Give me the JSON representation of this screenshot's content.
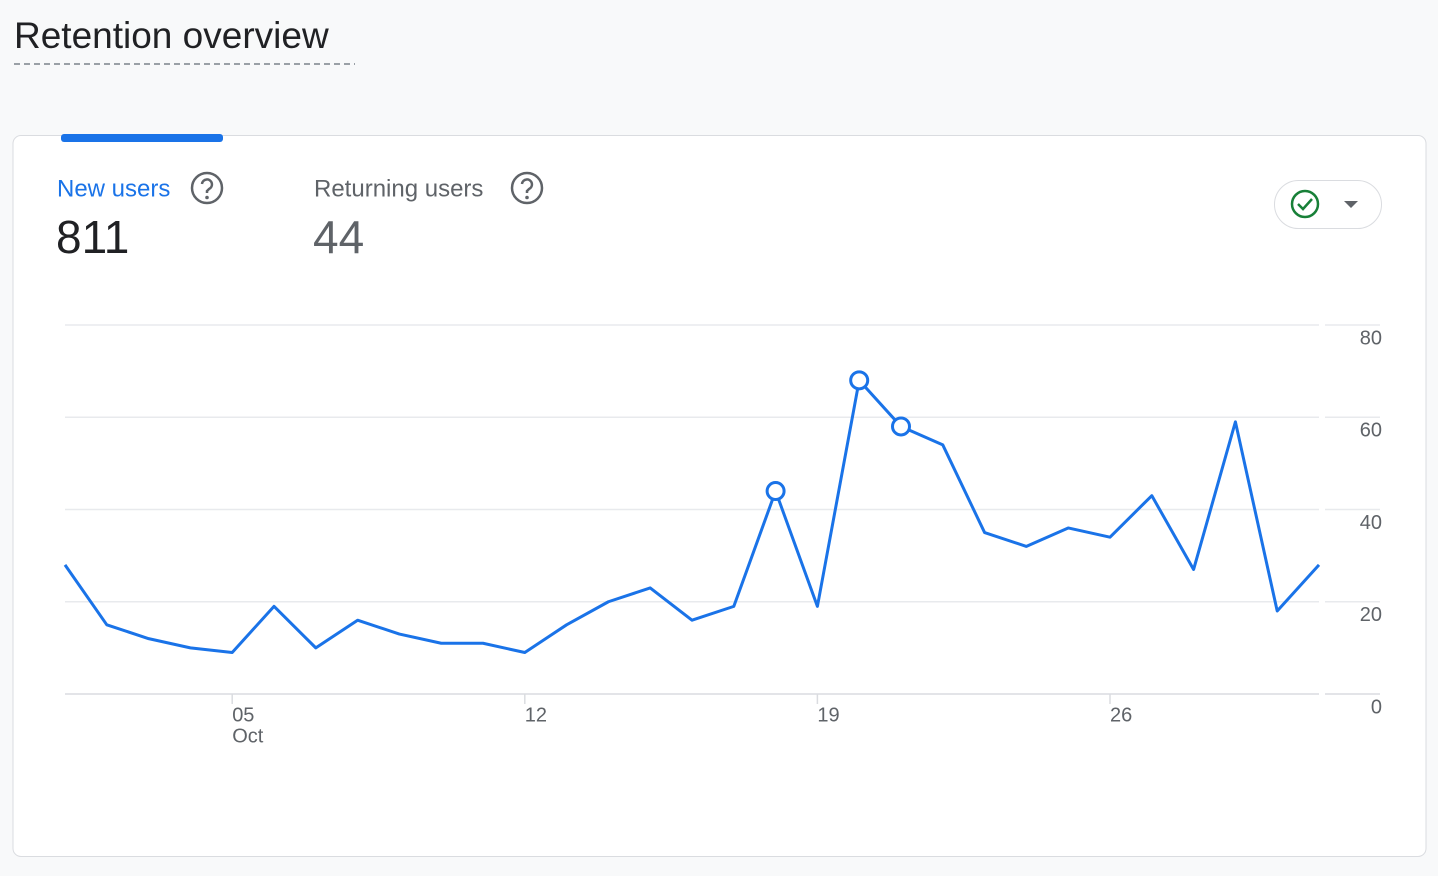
{
  "header": {
    "title": "Retention overview"
  },
  "tabs": [
    {
      "label": "New users",
      "value": "811"
    },
    {
      "label": "Returning users",
      "value": "44"
    }
  ],
  "chart_data": {
    "type": "line",
    "x": [
      1,
      2,
      3,
      4,
      5,
      6,
      7,
      8,
      9,
      10,
      11,
      12,
      13,
      14,
      15,
      16,
      17,
      18,
      19,
      20,
      21,
      22,
      23,
      24,
      25,
      26,
      27,
      28,
      29,
      30,
      31
    ],
    "values": [
      28,
      15,
      12,
      10,
      9,
      19,
      10,
      16,
      13,
      11,
      11,
      9,
      15,
      20,
      23,
      16,
      19,
      44,
      19,
      68,
      58,
      54,
      35,
      32,
      36,
      34,
      43,
      27,
      59,
      18,
      28
    ],
    "color": "#1a73e8",
    "highlighted_points": [
      17,
      19,
      20
    ],
    "xlim": [
      1,
      31
    ],
    "xticks": [
      {
        "value": 5,
        "label": "05"
      },
      12,
      19,
      26
    ],
    "x_sublabel": "Oct",
    "ylim": [
      0,
      80
    ],
    "yticks": [
      0,
      20,
      40,
      60,
      80
    ],
    "grid": true
  }
}
